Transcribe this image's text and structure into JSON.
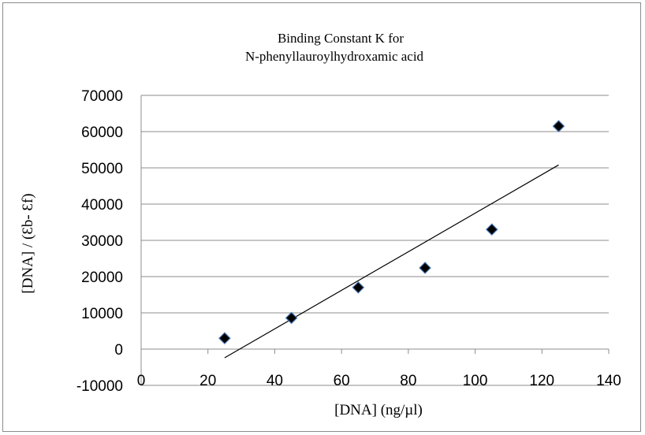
{
  "chart_data": {
    "type": "scatter",
    "title_lines": [
      "Binding Constant K for",
      "N-phenyllauroylhydroxamic  acid"
    ],
    "xlabel": "[DNA]    (ng/µl)",
    "ylabel": "[DNA] / (Ɛb- Ɛf)",
    "xlim": [
      0,
      140
    ],
    "ylim": [
      -10000,
      70000
    ],
    "x_ticks": [
      0,
      20,
      40,
      60,
      80,
      100,
      120,
      140
    ],
    "y_ticks": [
      -10000,
      0,
      10000,
      20000,
      30000,
      40000,
      50000,
      60000,
      70000
    ],
    "grid": "horizontal",
    "legend": "none",
    "series": [
      {
        "marker": "diamond",
        "color": "#000000",
        "marker_edge_color": "#4a7ab5",
        "x": [
          25,
          45,
          65,
          85,
          105,
          125
        ],
        "y": [
          3000,
          8600,
          17000,
          22400,
          33000,
          61500
        ]
      }
    ],
    "trendline": {
      "type": "linear",
      "color": "#000000",
      "x": [
        25,
        125
      ],
      "y": [
        -2400,
        50800
      ]
    }
  }
}
